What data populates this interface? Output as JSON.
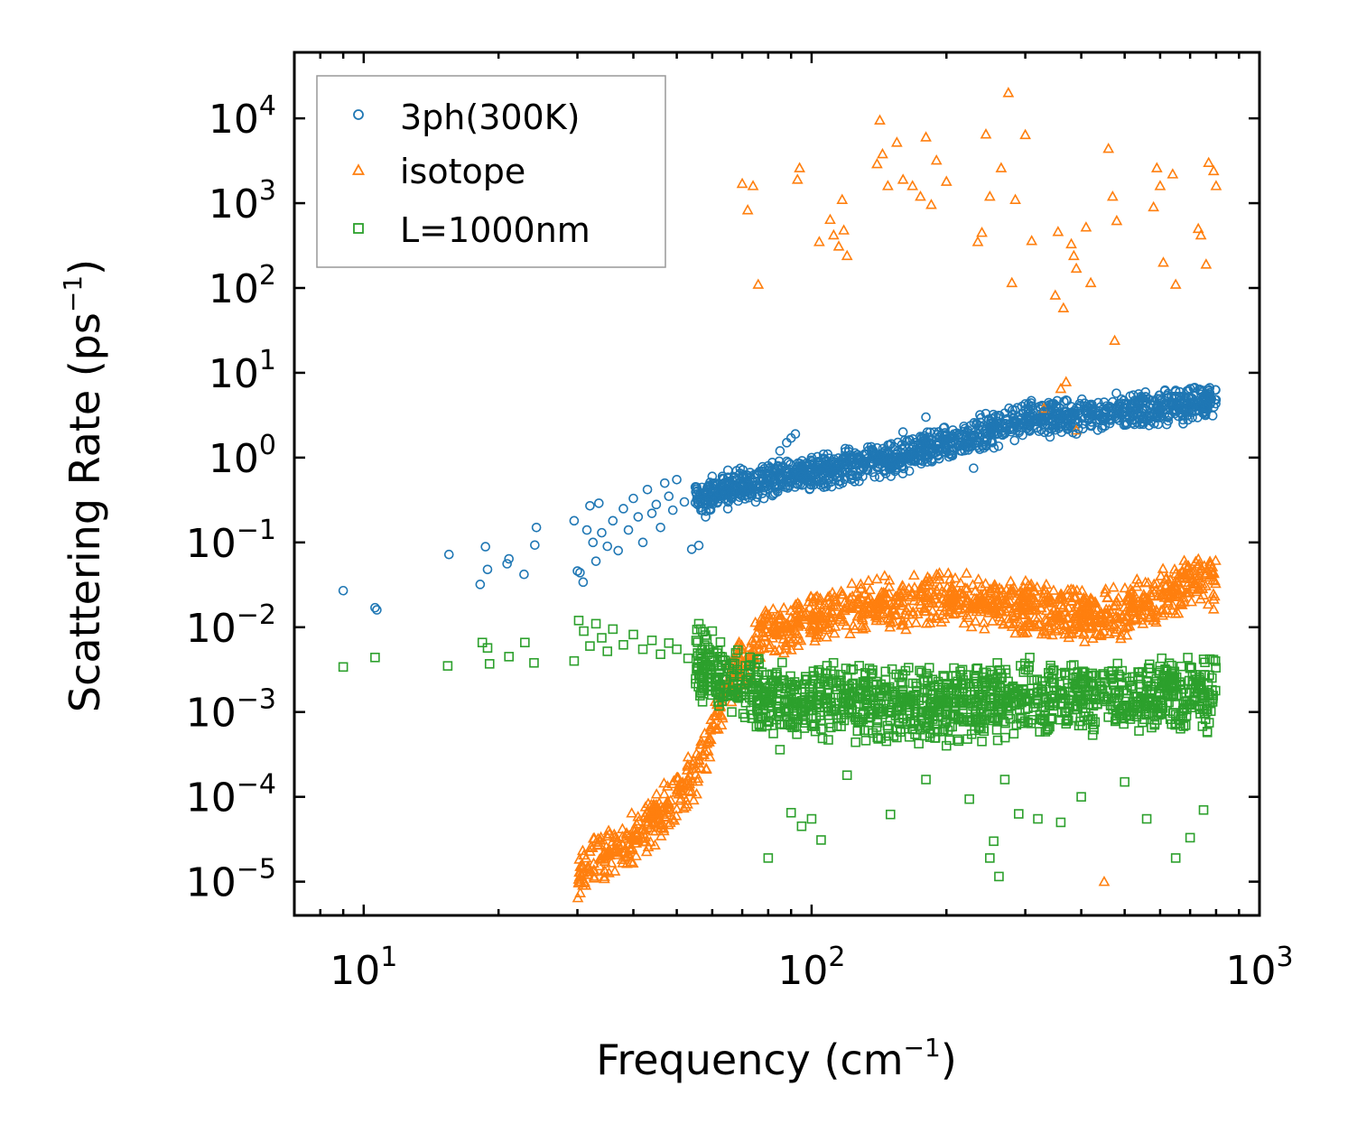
{
  "chart_data": {
    "type": "scatter",
    "title": "",
    "xlabel": "Frequency (cm",
    "xlabel_sup": "−1",
    "xlabel_tail": ")",
    "ylabel": "Scattering Rate (ps",
    "ylabel_sup": "−1",
    "ylabel_tail": ")",
    "x_scale": "log",
    "y_scale": "log",
    "xlim": [
      7,
      1000
    ],
    "ylim": [
      4e-06,
      60000
    ],
    "grid": false,
    "legend_position": "top-left",
    "x_ticks": [
      {
        "value": 10,
        "base": "10",
        "exp": "1"
      },
      {
        "value": 100,
        "base": "10",
        "exp": "2"
      },
      {
        "value": 1000,
        "base": "10",
        "exp": "3"
      }
    ],
    "y_ticks": [
      {
        "value": 1e-05,
        "base": "10",
        "exp": "−5"
      },
      {
        "value": 0.0001,
        "base": "10",
        "exp": "−4"
      },
      {
        "value": 0.001,
        "base": "10",
        "exp": "−3"
      },
      {
        "value": 0.01,
        "base": "10",
        "exp": "−2"
      },
      {
        "value": 0.1,
        "base": "10",
        "exp": "−1"
      },
      {
        "value": 1,
        "base": "10",
        "exp": "0"
      },
      {
        "value": 10,
        "base": "10",
        "exp": "1"
      },
      {
        "value": 100,
        "base": "10",
        "exp": "2"
      },
      {
        "value": 1000,
        "base": "10",
        "exp": "3"
      },
      {
        "value": 10000,
        "base": "10",
        "exp": "4"
      }
    ],
    "series": [
      {
        "name": "3ph(300K)",
        "marker": "circle",
        "color": "#1f77b4",
        "points": [
          [
            9.0,
            0.027
          ],
          [
            10.6,
            0.017
          ],
          [
            10.7,
            0.016
          ],
          [
            15.5,
            0.072
          ],
          [
            18.2,
            0.032
          ],
          [
            18.7,
            0.089
          ],
          [
            18.9,
            0.048
          ],
          [
            20.9,
            0.056
          ],
          [
            21.1,
            0.064
          ],
          [
            22.8,
            0.042
          ],
          [
            24.1,
            0.093
          ],
          [
            24.3,
            0.15
          ],
          [
            29.5,
            0.18
          ],
          [
            30.0,
            0.046
          ],
          [
            30.4,
            0.044
          ],
          [
            30.9,
            0.034
          ],
          [
            31.5,
            0.14
          ],
          [
            32.0,
            0.27
          ],
          [
            32.5,
            0.1
          ],
          [
            33.0,
            0.06
          ],
          [
            33.5,
            0.29
          ],
          [
            34.0,
            0.13
          ],
          [
            35.0,
            0.09
          ],
          [
            36.0,
            0.18
          ],
          [
            37.0,
            0.08
          ],
          [
            38.0,
            0.25
          ],
          [
            39.0,
            0.14
          ],
          [
            40.0,
            0.33
          ],
          [
            41.0,
            0.2
          ],
          [
            42.0,
            0.1
          ],
          [
            43.0,
            0.42
          ],
          [
            44.0,
            0.22
          ],
          [
            45.0,
            0.28
          ],
          [
            46.0,
            0.15
          ],
          [
            47.0,
            0.5
          ],
          [
            48.0,
            0.35
          ],
          [
            49.0,
            0.24
          ],
          [
            50.0,
            0.55
          ],
          [
            52.0,
            0.3
          ],
          [
            54.0,
            0.083
          ],
          [
            55.0,
            0.45
          ],
          [
            56.0,
            0.092
          ],
          [
            58.0,
            0.2
          ],
          [
            60.0,
            0.6
          ],
          [
            62.0,
            0.4
          ],
          [
            65.0,
            0.25
          ],
          [
            68.0,
            0.7
          ],
          [
            72.0,
            0.5
          ],
          [
            75.0,
            0.3
          ],
          [
            80.0,
            0.8
          ],
          [
            85.0,
            1.2
          ],
          [
            88.0,
            1.5
          ],
          [
            90.0,
            1.7
          ],
          [
            92.0,
            1.9
          ],
          [
            95.0,
            0.6
          ],
          [
            100.0,
            1.0
          ],
          [
            110.0,
            0.7
          ],
          [
            120.0,
            0.9
          ],
          [
            130.0,
            0.6
          ],
          [
            140.0,
            1.3
          ],
          [
            150.0,
            1.0
          ],
          [
            160.0,
            2.0
          ],
          [
            170.0,
            1.5
          ],
          [
            180.0,
            3.0
          ],
          [
            200.0,
            1.8
          ],
          [
            220.0,
            2.2
          ],
          [
            230.0,
            0.75
          ],
          [
            240.0,
            1.4
          ],
          [
            260.0,
            2.5
          ],
          [
            280.0,
            3.2
          ],
          [
            300.0,
            4.3
          ],
          [
            330.0,
            3.5
          ],
          [
            360.0,
            2.6
          ],
          [
            390.0,
            1.9
          ],
          [
            420.0,
            3.8
          ],
          [
            450.0,
            4.5
          ],
          [
            500.0,
            3.0
          ],
          [
            550.0,
            5.0
          ],
          [
            600.0,
            3.8
          ],
          [
            650.0,
            6.0
          ],
          [
            700.0,
            6.5
          ],
          [
            750.0,
            5.2
          ],
          [
            800.0,
            4.8
          ]
        ],
        "band": {
          "x_start": 55,
          "x_end": 800,
          "anchors": [
            [
              55,
              0.35
            ],
            [
              70,
              0.5
            ],
            [
              100,
              0.7
            ],
            [
              150,
              1.0
            ],
            [
              200,
              1.6
            ],
            [
              300,
              3.0
            ],
            [
              400,
              3.3
            ],
            [
              600,
              4.2
            ],
            [
              800,
              4.8
            ]
          ],
          "spread_low": 0.55,
          "spread_high": 1.6
        }
      },
      {
        "name": "isotope",
        "marker": "triangle",
        "color": "#ff7f0e",
        "points": [
          [
            70.0,
            1700
          ],
          [
            72.0,
            830
          ],
          [
            74.0,
            1600
          ],
          [
            76.0,
            110
          ],
          [
            93.0,
            1900
          ],
          [
            94.0,
            2600
          ],
          [
            104.0,
            350
          ],
          [
            110.0,
            640
          ],
          [
            112.0,
            420
          ],
          [
            115.0,
            310
          ],
          [
            117.0,
            1100
          ],
          [
            118.0,
            480
          ],
          [
            120.0,
            240
          ],
          [
            140.0,
            2900
          ],
          [
            142.0,
            9500
          ],
          [
            144.0,
            3800
          ],
          [
            148.0,
            1600
          ],
          [
            155.0,
            5200
          ],
          [
            160.0,
            1900
          ],
          [
            168.0,
            1600
          ],
          [
            175.0,
            1200
          ],
          [
            180.0,
            6000
          ],
          [
            185.0,
            960
          ],
          [
            190.0,
            3200
          ],
          [
            200.0,
            1800
          ],
          [
            235.0,
            350
          ],
          [
            240.0,
            450
          ],
          [
            245.0,
            6500
          ],
          [
            250.0,
            1200
          ],
          [
            265.0,
            2600
          ],
          [
            275.0,
            20000
          ],
          [
            280.0,
            115
          ],
          [
            285.0,
            1100
          ],
          [
            300.0,
            6400
          ],
          [
            310.0,
            360
          ],
          [
            350.0,
            82
          ],
          [
            355.0,
            460
          ],
          [
            365.0,
            58
          ],
          [
            380.0,
            330
          ],
          [
            385.0,
            240
          ],
          [
            390.0,
            170
          ],
          [
            410.0,
            520
          ],
          [
            420.0,
            115
          ],
          [
            460.0,
            4400
          ],
          [
            470.0,
            1200
          ],
          [
            475.0,
            24
          ],
          [
            480.0,
            620
          ],
          [
            580.0,
            900
          ],
          [
            590.0,
            2600
          ],
          [
            600.0,
            1600
          ],
          [
            610.0,
            200
          ],
          [
            640.0,
            2200
          ],
          [
            650.0,
            110
          ],
          [
            730.0,
            500
          ],
          [
            740.0,
            420
          ],
          [
            760.0,
            190
          ],
          [
            770.0,
            3000
          ],
          [
            790.0,
            2400
          ],
          [
            800.0,
            1600
          ],
          [
            330.0,
            3.8
          ],
          [
            360.0,
            6.5
          ],
          [
            370.0,
            7.8
          ],
          [
            390.0,
            2.1
          ],
          [
            450.0,
            1e-05
          ]
        ],
        "band": {
          "x_start": 30,
          "x_end": 800,
          "anchors": [
            [
              30,
              1.2e-05
            ],
            [
              40,
              3e-05
            ],
            [
              50,
              8e-05
            ],
            [
              58,
              0.0003
            ],
            [
              65,
              0.002
            ],
            [
              80,
              0.008
            ],
            [
              120,
              0.015
            ],
            [
              200,
              0.02
            ],
            [
              300,
              0.015
            ],
            [
              450,
              0.012
            ],
            [
              600,
              0.02
            ],
            [
              700,
              0.03
            ],
            [
              800,
              0.03
            ]
          ],
          "spread_low": 0.5,
          "spread_high": 2.5
        }
      },
      {
        "name": "L=1000nm",
        "marker": "square",
        "color": "#2ca02c",
        "points": [
          [
            9.0,
            0.0034
          ],
          [
            10.6,
            0.0044
          ],
          [
            15.4,
            0.0035
          ],
          [
            18.4,
            0.0066
          ],
          [
            18.9,
            0.0057
          ],
          [
            19.1,
            0.0037
          ],
          [
            21.1,
            0.0045
          ],
          [
            22.9,
            0.0066
          ],
          [
            24.0,
            0.0038
          ],
          [
            29.5,
            0.004
          ],
          [
            30.2,
            0.012
          ],
          [
            31.0,
            0.009
          ],
          [
            32.0,
            0.006
          ],
          [
            33.0,
            0.011
          ],
          [
            34.0,
            0.0075
          ],
          [
            35.0,
            0.0052
          ],
          [
            36.0,
            0.0095
          ],
          [
            38.0,
            0.0062
          ],
          [
            40.0,
            0.0082
          ],
          [
            42.0,
            0.0055
          ],
          [
            44.0,
            0.007
          ],
          [
            46.0,
            0.0048
          ],
          [
            48.0,
            0.0065
          ],
          [
            50.0,
            0.0055
          ],
          [
            53.0,
            0.0043
          ],
          [
            56.0,
            0.011
          ],
          [
            60.0,
            0.009
          ],
          [
            80.0,
            1.9e-05
          ],
          [
            85.0,
            0.00036
          ],
          [
            90.0,
            6.5e-05
          ],
          [
            95.0,
            4.5e-05
          ],
          [
            100.0,
            5.5e-05
          ],
          [
            105.0,
            3.1e-05
          ],
          [
            120.0,
            0.00018
          ],
          [
            150.0,
            6.2e-05
          ],
          [
            180.0,
            0.00016
          ],
          [
            200.0,
            0.0004
          ],
          [
            225.0,
            9.4e-05
          ],
          [
            240.0,
            0.00045
          ],
          [
            250.0,
            1.9e-05
          ],
          [
            255.0,
            3e-05
          ],
          [
            262.0,
            1.15e-05
          ],
          [
            270.0,
            0.00016
          ],
          [
            290.0,
            6.3e-05
          ],
          [
            320.0,
            5.5e-05
          ],
          [
            360.0,
            5e-05
          ],
          [
            400.0,
            0.0001
          ],
          [
            500.0,
            0.00015
          ],
          [
            560.0,
            5.5e-05
          ],
          [
            650.0,
            1.9e-05
          ],
          [
            700.0,
            3.3e-05
          ],
          [
            750.0,
            7e-05
          ]
        ],
        "band": {
          "x_start": 55,
          "x_end": 800,
          "anchors": [
            [
              55,
              0.0035
            ],
            [
              65,
              0.002
            ],
            [
              80,
              0.0013
            ],
            [
              150,
              0.0011
            ],
            [
              250,
              0.0012
            ],
            [
              350,
              0.0014
            ],
            [
              500,
              0.0013
            ],
            [
              650,
              0.0016
            ],
            [
              800,
              0.0014
            ]
          ],
          "spread_low": 0.35,
          "spread_high": 3.5
        }
      }
    ]
  }
}
